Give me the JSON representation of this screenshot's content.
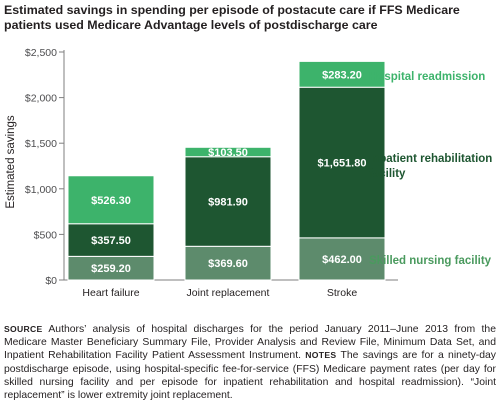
{
  "chart_data": {
    "type": "bar",
    "stacked": true,
    "title": "Estimated savings in spending per episode of postacute care if FFS Medicare patients used Medicare Advantage levels of postdischarge care",
    "ylabel": "Estimated savings",
    "xlabel": "",
    "ylim": [
      0,
      2500
    ],
    "yticks": [
      0,
      500,
      1000,
      1500,
      2000,
      2500
    ],
    "ytick_labels": [
      "$0",
      "$500",
      "$1,000",
      "$1,500",
      "$2,000",
      "$2,500"
    ],
    "categories": [
      "Heart failure",
      "Joint replacement",
      "Stroke"
    ],
    "series": [
      {
        "name": "Skilled nursing facility",
        "values": [
          259.2,
          369.6,
          462.0
        ],
        "labels": [
          "$259.20",
          "$369.60",
          "$462.00"
        ],
        "color": "#5d8b6c",
        "legend_color": "#4a9a5e"
      },
      {
        "name": "Inpatient rehabilitation facility",
        "values": [
          357.5,
          981.9,
          1651.8
        ],
        "labels": [
          "$357.50",
          "$981.90",
          "$1,651.80"
        ],
        "color": "#1e5631",
        "legend_color": "#1e5631"
      },
      {
        "name": "Hospital readmission",
        "values": [
          526.3,
          103.5,
          283.2
        ],
        "labels": [
          "$526.30",
          "$103.50",
          "$283.20"
        ],
        "color": "#3db36b",
        "legend_color": "#3db36b"
      }
    ],
    "grid": false,
    "legend": "right"
  },
  "footnote": {
    "source_key": "SOURCE",
    "source_text": "Authors’ analysis of hospital discharges for the period January 2011–June 2013 from the Medicare Master Beneficiary Summary File, Provider Analysis and Review File, Minimum Data Set, and Inpatient Rehabilitation Facility Patient Assessment Instrument.",
    "notes_key": "NOTES",
    "notes_text": "The savings are for a ninety-day postdischarge episode, using hospital-specific fee-for-service (FFS) Medicare payment rates (per day for skilled nursing facility and per episode for inpatient rehabilitation and hospital readmission). “Joint replacement” is lower extremity joint replacement."
  }
}
